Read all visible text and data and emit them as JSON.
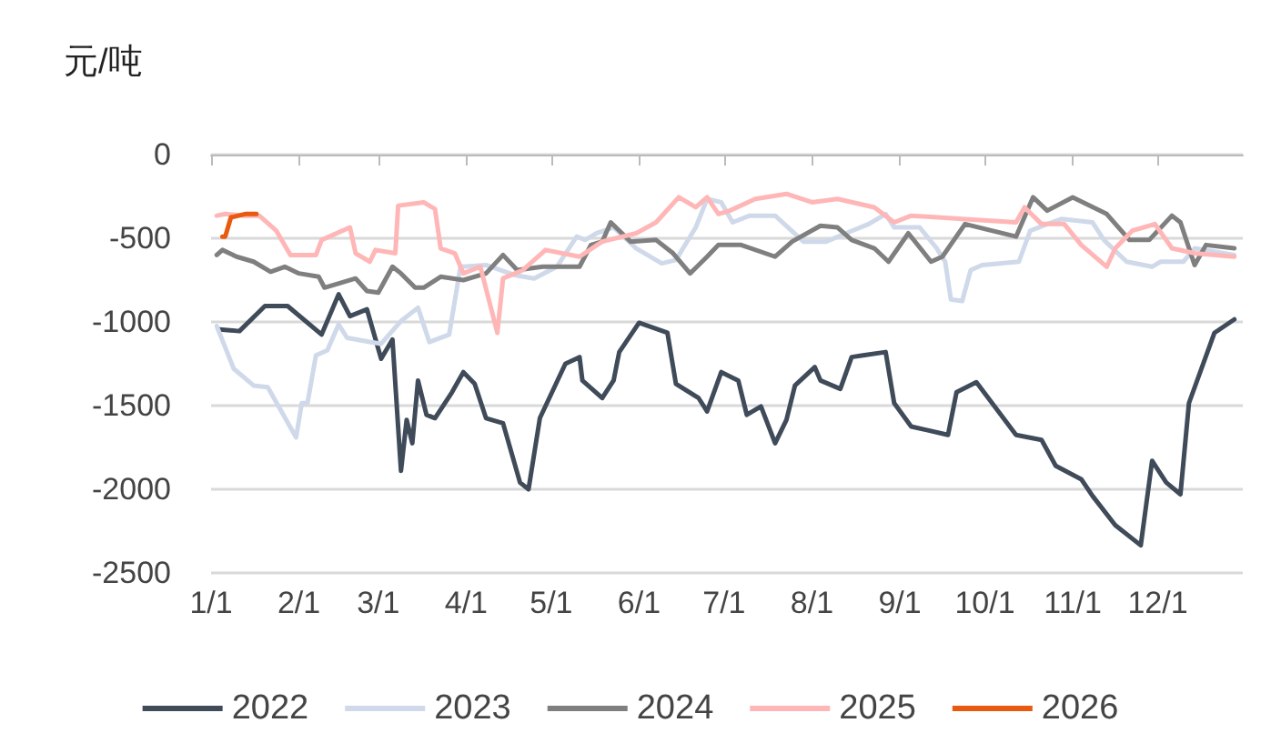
{
  "chart_data": {
    "type": "line",
    "ylabel": "元/吨",
    "ylim": [
      -2500,
      0
    ],
    "yticks": [
      -2500,
      -2000,
      -1500,
      -1000,
      -500,
      0
    ],
    "xlim": [
      "--01-01",
      "--12-31"
    ],
    "xticks": [
      {
        "value": "--01-01",
        "label": "1/1"
      },
      {
        "value": "--02-01",
        "label": "2/1"
      },
      {
        "value": "--03-01",
        "label": "3/1"
      },
      {
        "value": "--04-01",
        "label": "4/1"
      },
      {
        "value": "--05-01",
        "label": "5/1"
      },
      {
        "value": "--06-01",
        "label": "6/1"
      },
      {
        "value": "--07-01",
        "label": "7/1"
      },
      {
        "value": "--08-01",
        "label": "8/1"
      },
      {
        "value": "--09-01",
        "label": "9/1"
      },
      {
        "value": "--10-01",
        "label": "10/1"
      },
      {
        "value": "--11-01",
        "label": "11/1"
      },
      {
        "value": "--12-01",
        "label": "12/1"
      }
    ],
    "grid": "y",
    "legend": "bottom",
    "marker": "none",
    "line_style": "solid",
    "series": [
      {
        "name": "2022",
        "color": "#404b5a",
        "x": [
          "--01-04",
          "--01-11",
          "--01-20",
          "--01-28",
          "--02-09",
          "--02-15",
          "--02-19",
          "--02-25",
          "--03-02",
          "--03-06",
          "--03-09",
          "--03-11",
          "--03-13",
          "--03-15",
          "--03-18",
          "--03-21",
          "--03-27",
          "--03-31",
          "--04-04",
          "--04-08",
          "--04-14",
          "--04-20",
          "--04-23",
          "--04-27",
          "--05-06",
          "--05-11",
          "--05-12",
          "--05-19",
          "--05-23",
          "--05-25",
          "--06-01",
          "--06-11",
          "--06-14",
          "--06-22",
          "--06-25",
          "--06-30",
          "--07-06",
          "--07-09",
          "--07-14",
          "--07-19",
          "--07-23",
          "--07-26",
          "--08-02",
          "--08-04",
          "--08-11",
          "--08-15",
          "--08-19",
          "--08-27",
          "--08-30",
          "--09-05",
          "--09-18",
          "--09-21",
          "--09-28",
          "--10-12",
          "--10-21",
          "--10-26",
          "--11-04",
          "--11-08",
          "--11-16",
          "--11-25",
          "--11-29",
          "--12-04",
          "--12-09",
          "--12-12",
          "--12-21",
          "--12-28"
        ],
        "values": [
          -1045,
          -1055,
          -905,
          -905,
          -1075,
          -835,
          -965,
          -925,
          -1220,
          -1105,
          -1890,
          -1585,
          -1725,
          -1350,
          -1555,
          -1575,
          -1420,
          -1300,
          -1370,
          -1575,
          -1605,
          -1960,
          -2000,
          -1575,
          -1250,
          -1210,
          -1350,
          -1455,
          -1350,
          -1180,
          -1005,
          -1065,
          -1370,
          -1455,
          -1535,
          -1300,
          -1350,
          -1555,
          -1505,
          -1725,
          -1585,
          -1380,
          -1270,
          -1350,
          -1400,
          -1210,
          -1200,
          -1180,
          -1485,
          -1625,
          -1675,
          -1420,
          -1360,
          -1675,
          -1705,
          -1860,
          -1940,
          -2040,
          -2215,
          -2335,
          -1830,
          -1960,
          -2030,
          -1485,
          -1065,
          -985
        ]
      },
      {
        "name": "2023",
        "color": "#cfd9ea",
        "x": [
          "--01-03",
          "--01-09",
          "--01-16",
          "--01-21",
          "--01-31",
          "--02-02",
          "--02-04",
          "--02-07",
          "--02-11",
          "--02-15",
          "--02-18",
          "--02-26",
          "--03-02",
          "--03-09",
          "--03-15",
          "--03-19",
          "--03-26",
          "--03-30",
          "--04-08",
          "--04-18",
          "--04-25",
          "--05-03",
          "--05-10",
          "--05-13",
          "--05-17",
          "--05-23",
          "--05-31",
          "--06-09",
          "--06-14",
          "--06-21",
          "--06-25",
          "--06-30",
          "--07-04",
          "--07-10",
          "--07-19",
          "--07-29",
          "--08-06",
          "--08-13",
          "--08-21",
          "--08-27",
          "--08-30",
          "--09-08",
          "--09-14",
          "--09-17",
          "--09-19",
          "--09-23",
          "--09-26",
          "--09-30",
          "--10-13",
          "--10-17",
          "--10-23",
          "--10-28",
          "--11-08",
          "--11-12",
          "--11-20",
          "--11-29",
          "--12-02",
          "--12-10",
          "--12-14",
          "--12-28"
        ],
        "values": [
          -1025,
          -1280,
          -1380,
          -1390,
          -1690,
          -1485,
          -1485,
          -1200,
          -1170,
          -1015,
          -1095,
          -1120,
          -1130,
          -995,
          -915,
          -1120,
          -1075,
          -670,
          -660,
          -720,
          -740,
          -670,
          -490,
          -510,
          -470,
          -435,
          -560,
          -650,
          -630,
          -435,
          -265,
          -285,
          -405,
          -365,
          -365,
          -520,
          -520,
          -470,
          -415,
          -355,
          -435,
          -435,
          -560,
          -640,
          -865,
          -875,
          -690,
          -660,
          -640,
          -455,
          -415,
          -385,
          -405,
          -510,
          -640,
          -670,
          -640,
          -640,
          -560,
          -600
        ]
      },
      {
        "name": "2024",
        "color": "#7f7f7f",
        "x": [
          "--01-03",
          "--01-05",
          "--01-10",
          "--01-16",
          "--01-22",
          "--01-27",
          "--02-01",
          "--02-08",
          "--02-10",
          "--02-21",
          "--02-25",
          "--03-01",
          "--03-06",
          "--03-09",
          "--03-14",
          "--03-17",
          "--03-23",
          "--03-31",
          "--04-08",
          "--04-14",
          "--04-19",
          "--04-28",
          "--05-11",
          "--05-15",
          "--05-19",
          "--05-22",
          "--05-29",
          "--06-07",
          "--06-13",
          "--06-19",
          "--06-25",
          "--06-29",
          "--07-07",
          "--07-19",
          "--07-25",
          "--08-04",
          "--08-10",
          "--08-15",
          "--08-23",
          "--08-28",
          "--09-04",
          "--09-12",
          "--09-16",
          "--09-24",
          "--10-12",
          "--10-18",
          "--10-23",
          "--11-01",
          "--11-13",
          "--11-21",
          "--11-28",
          "--12-06",
          "--12-09",
          "--12-14",
          "--12-18",
          "--12-28"
        ],
        "values": [
          -600,
          -570,
          -610,
          -640,
          -700,
          -670,
          -710,
          -730,
          -795,
          -740,
          -815,
          -825,
          -670,
          -710,
          -795,
          -795,
          -730,
          -750,
          -710,
          -600,
          -690,
          -670,
          -670,
          -540,
          -520,
          -405,
          -520,
          -510,
          -590,
          -710,
          -610,
          -540,
          -540,
          -610,
          -520,
          -425,
          -435,
          -510,
          -560,
          -640,
          -470,
          -640,
          -610,
          -415,
          -490,
          -255,
          -335,
          -255,
          -355,
          -510,
          -510,
          -365,
          -405,
          -660,
          -540,
          -560
        ]
      },
      {
        "name": "2025",
        "color": "#ffb6b6",
        "x": [
          "--01-03",
          "--01-06",
          "--01-13",
          "--01-18",
          "--01-24",
          "--01-29",
          "--02-07",
          "--02-09",
          "--02-19",
          "--02-21",
          "--02-26",
          "--02-28",
          "--03-07",
          "--03-08",
          "--03-17",
          "--03-21",
          "--03-23",
          "--03-28",
          "--03-31",
          "--04-06",
          "--04-12",
          "--04-14",
          "--04-21",
          "--04-29",
          "--05-11",
          "--05-19",
          "--05-31",
          "--06-07",
          "--06-15",
          "--06-21",
          "--06-25",
          "--06-29",
          "--07-03",
          "--07-12",
          "--07-23",
          "--08-01",
          "--08-10",
          "--08-23",
          "--08-30",
          "--09-05",
          "--09-23",
          "--10-12",
          "--10-15",
          "--10-21",
          "--10-29",
          "--11-04",
          "--11-13",
          "--11-16",
          "--11-22",
          "--11-30",
          "--12-06",
          "--12-14",
          "--12-28"
        ],
        "values": [
          -365,
          -355,
          -365,
          -365,
          -455,
          -600,
          -600,
          -510,
          -435,
          -590,
          -640,
          -570,
          -590,
          -305,
          -285,
          -325,
          -560,
          -590,
          -710,
          -670,
          -1065,
          -740,
          -690,
          -570,
          -610,
          -520,
          -470,
          -405,
          -255,
          -315,
          -255,
          -355,
          -335,
          -265,
          -235,
          -285,
          -265,
          -315,
          -405,
          -365,
          -385,
          -405,
          -315,
          -415,
          -415,
          -540,
          -670,
          -560,
          -455,
          -415,
          -560,
          -590,
          -610
        ]
      },
      {
        "name": "2026",
        "color": "#e85a10",
        "x": [
          "--01-05",
          "--01-06",
          "--01-08",
          "--01-13",
          "--01-17"
        ],
        "values": [
          -490,
          -490,
          -375,
          -355,
          -355
        ]
      }
    ]
  }
}
